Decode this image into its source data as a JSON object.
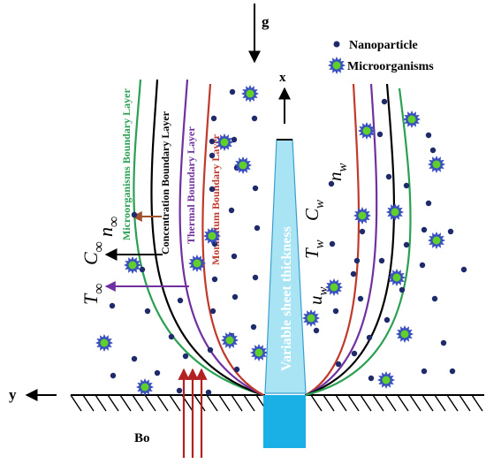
{
  "labels": {
    "gravity": "g",
    "x_axis": "x",
    "y_axis": "y",
    "magnetic_field": "Bo",
    "sheet": "Variable sheet thickness",
    "layer_microorganisms": "Microorganisms  Boundary Layer",
    "layer_concentration": "Concentration Boundary Layer",
    "layer_thermal": "Thermal Boundary Layer",
    "layer_momentum": "Momentum Boundary Layer",
    "n_inf_base": "n",
    "n_inf_sub": "∞",
    "c_inf_base": "C",
    "c_inf_sub": "∞",
    "t_inf_base": "T",
    "t_inf_sub": "∞",
    "n_w_base": "n",
    "n_w_sub": "w",
    "c_w_base": "C",
    "c_w_sub": "w",
    "t_w_base": "T",
    "t_w_sub": "w",
    "u_w_base": "u",
    "u_w_sub": "w"
  },
  "legend": {
    "nanoparticle": "Nanoparticle",
    "microorganisms": "Microorganisms"
  },
  "colors": {
    "microorganisms_layer": "#2aa052",
    "concentration_layer": "#000000",
    "thermal_layer": "#7030a0",
    "momentum_layer": "#c0392b",
    "nanoparticle": "#1f2a6b",
    "microbe_body": "#3a4fbf",
    "microbe_core": "#5fd02a",
    "sheet": "#a8e4f4",
    "sheet_base": "#1ab0e6",
    "bo_arrow": "#b22222",
    "label_microorganisms": "#2aa052",
    "label_thermal": "#7030a0",
    "label_momentum": "#c0392b"
  },
  "icons": {
    "nanoparticle": "nanoparticle-dot-icon",
    "microorganism": "microorganism-star-icon"
  }
}
